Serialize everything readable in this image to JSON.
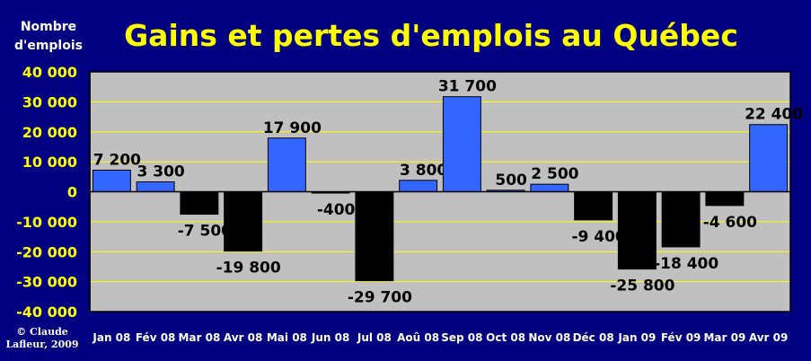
{
  "chart_data": {
    "type": "bar",
    "title": "Gains et pertes d'emplois au Québec",
    "ylabel": [
      "Nombre",
      "d'emplois"
    ],
    "xlabel": "",
    "categories": [
      "Jan 08",
      "Fév 08",
      "Mar 08",
      "Avr 08",
      "Mai 08",
      "Jun 08",
      "Jul 08",
      "Aoû 08",
      "Sep 08",
      "Oct 08",
      "Nov 08",
      "Déc 08",
      "Jan 09",
      "Fév 09",
      "Mar 09",
      "Avr 09"
    ],
    "values": [
      7200,
      3300,
      -7500,
      -19800,
      17900,
      -400,
      -29700,
      3800,
      31700,
      500,
      2500,
      -9400,
      -25800,
      -18400,
      -4600,
      22400
    ],
    "value_labels": [
      "7 200",
      "3 300",
      "-7 500",
      "-19 800",
      "17 900",
      "-400",
      "-29 700",
      "3 800",
      "31 700",
      "500",
      "2 500",
      "-9 400",
      "-25 800",
      "-18 400",
      "-4 600",
      "22 400"
    ],
    "ylim": [
      -40000,
      40000
    ],
    "yticks": [
      40000,
      30000,
      20000,
      10000,
      0,
      -10000,
      -20000,
      -30000,
      -40000
    ],
    "ytick_labels": [
      "40 000",
      "30 000",
      "20 000",
      "10 000",
      "0",
      "-10 000",
      "-20 000",
      "-30 000",
      "-40 000"
    ],
    "grid": true,
    "legend": "none"
  },
  "colors": {
    "background": "#000080",
    "plot_area": "#c0c0c0",
    "gain_bar": "#3366ff",
    "loss_bar": "#000000",
    "gridline": "#ffff00",
    "title": "#ffff00",
    "ytick_text": "#ffff00",
    "xtick_text": "#ffffff"
  },
  "credit": [
    "© Claude",
    "Lafleur, 2009"
  ]
}
